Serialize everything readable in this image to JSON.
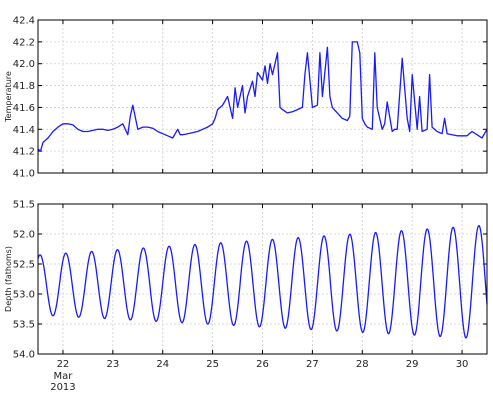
{
  "chart_data": [
    {
      "type": "line",
      "title": "",
      "xlabel": "",
      "ylabel": "Temperature",
      "ylim": [
        41.0,
        42.4
      ],
      "y_inverted": false,
      "yticks": [
        "41.0",
        "41.2",
        "41.4",
        "41.6",
        "41.8",
        "42.0",
        "42.2",
        "42.4"
      ],
      "xlim": [
        21.5,
        30.5
      ],
      "xticks": [
        22,
        23,
        24,
        25,
        26,
        27,
        28,
        29,
        30
      ],
      "grid": true,
      "series": [
        {
          "color": "#1a1aff",
          "x": [
            21.5,
            21.55,
            21.6,
            21.7,
            21.8,
            21.9,
            22.0,
            22.1,
            22.2,
            22.3,
            22.4,
            22.5,
            22.6,
            22.7,
            22.8,
            22.9,
            23.0,
            23.1,
            23.2,
            23.3,
            23.35,
            23.4,
            23.5,
            23.6,
            23.7,
            23.8,
            23.9,
            24.0,
            24.1,
            24.2,
            24.3,
            24.35,
            24.4,
            24.5,
            24.6,
            24.7,
            24.8,
            24.9,
            25.0,
            25.05,
            25.1,
            25.2,
            25.3,
            25.4,
            25.45,
            25.5,
            25.6,
            25.65,
            25.7,
            25.8,
            25.85,
            25.9,
            26.0,
            26.05,
            26.1,
            26.15,
            26.2,
            26.3,
            26.35,
            26.4,
            26.5,
            26.6,
            26.7,
            26.8,
            26.85,
            26.9,
            27.0,
            27.1,
            27.15,
            27.2,
            27.3,
            27.35,
            27.4,
            27.5,
            27.6,
            27.7,
            27.75,
            27.8,
            27.9,
            27.95,
            28.0,
            28.05,
            28.1,
            28.2,
            28.25,
            28.3,
            28.4,
            28.45,
            28.5,
            28.6,
            28.65,
            28.7,
            28.8,
            28.9,
            28.95,
            29.0,
            29.1,
            29.15,
            29.2,
            29.3,
            29.35,
            29.4,
            29.5,
            29.6,
            29.65,
            29.7,
            29.8,
            29.9,
            30.0,
            30.1,
            30.2,
            30.3,
            30.4,
            30.5
          ],
          "y": [
            41.22,
            41.2,
            41.28,
            41.32,
            41.38,
            41.42,
            41.45,
            41.45,
            41.44,
            41.4,
            41.38,
            41.38,
            41.39,
            41.4,
            41.4,
            41.39,
            41.4,
            41.42,
            41.45,
            41.35,
            41.52,
            41.62,
            41.4,
            41.42,
            41.42,
            41.41,
            41.38,
            41.36,
            41.34,
            41.32,
            41.4,
            41.35,
            41.35,
            41.36,
            41.37,
            41.38,
            41.4,
            41.42,
            41.45,
            41.5,
            41.58,
            41.62,
            41.7,
            41.5,
            41.78,
            41.6,
            41.8,
            41.55,
            41.7,
            41.84,
            41.7,
            41.92,
            41.85,
            41.98,
            41.82,
            42.0,
            41.9,
            42.1,
            41.6,
            41.58,
            41.55,
            41.56,
            41.58,
            41.6,
            41.9,
            42.1,
            41.6,
            41.62,
            42.1,
            41.7,
            42.15,
            41.7,
            41.6,
            41.55,
            41.5,
            41.48,
            41.52,
            42.2,
            42.2,
            42.1,
            41.5,
            41.45,
            41.42,
            41.4,
            42.1,
            41.6,
            41.4,
            41.45,
            41.65,
            41.38,
            41.4,
            41.4,
            42.05,
            41.5,
            41.38,
            41.9,
            41.4,
            41.7,
            41.38,
            41.4,
            41.9,
            41.42,
            41.38,
            41.36,
            41.5,
            41.36,
            41.35,
            41.34,
            41.34,
            41.34,
            41.38,
            41.35,
            41.32,
            41.4
          ]
        }
      ]
    },
    {
      "type": "line",
      "title": "",
      "xlabel": "",
      "ylabel": "Depth (fathoms)",
      "ylim": [
        54.0,
        51.5
      ],
      "y_inverted": true,
      "yticks": [
        "51.5",
        "52.0",
        "52.5",
        "53.0",
        "53.5",
        "54.0"
      ],
      "xlim": [
        21.5,
        30.5
      ],
      "xticks": [
        22,
        23,
        24,
        25,
        26,
        27,
        28,
        29,
        30
      ],
      "xticklabels": [
        "22",
        "23",
        "24",
        "25",
        "26",
        "27",
        "28",
        "29",
        "30"
      ],
      "xsublabel": [
        "Mar",
        "2013"
      ],
      "grid": true,
      "series": [
        {
          "color": "#1a1aff",
          "tidal": {
            "period_days": 0.5175,
            "first_min_depth_day": 21.54,
            "mean_depth": 52.85,
            "amplitude_start": 0.5,
            "amplitude_end": 0.95,
            "mean_drift": -0.05
          }
        }
      ]
    }
  ]
}
